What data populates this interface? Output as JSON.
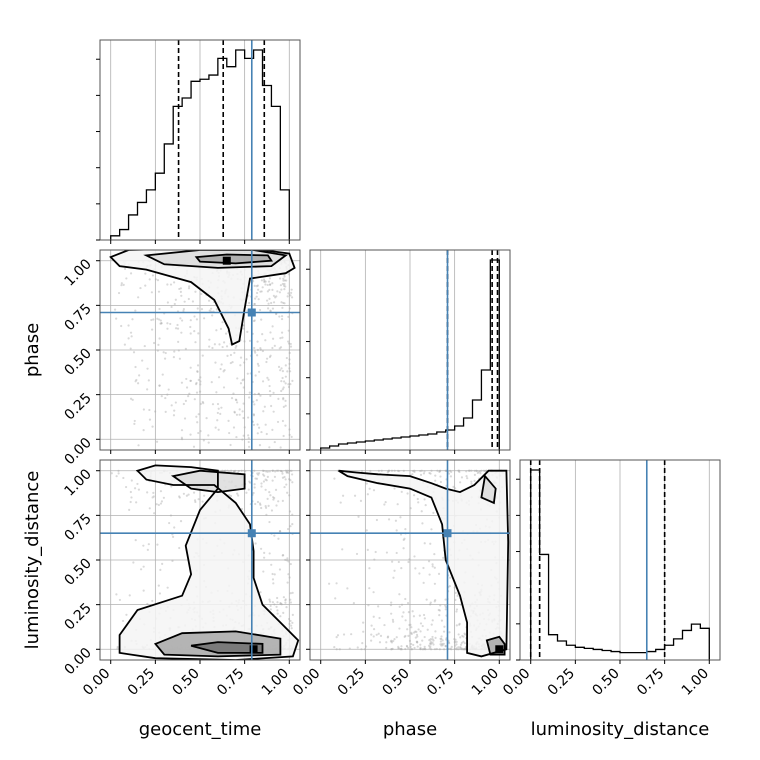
{
  "chart_data": {
    "type": "corner",
    "parameters": [
      "geocent_time",
      "phase",
      "luminosity_distance"
    ],
    "axis_labels": [
      "geocent_time",
      "phase",
      "luminosity_distance"
    ],
    "ticks": [
      0.0,
      0.25,
      0.5,
      0.75,
      1.0
    ],
    "tick_labels": [
      "0.00",
      "0.25",
      "0.50",
      "0.75",
      "1.00"
    ],
    "ranges": [
      [
        -0.06,
        1.06
      ],
      [
        -0.06,
        1.06
      ],
      [
        -0.06,
        1.06
      ]
    ],
    "grid": true,
    "truths": [
      0.79,
      0.71,
      0.65
    ],
    "quantiles": [
      [
        0.38,
        0.63,
        0.86
      ],
      [
        0.71,
        0.96,
        0.99
      ],
      [
        0.0,
        0.05,
        0.75
      ]
    ],
    "histograms": [
      {
        "bin_edges": [
          0.0,
          0.05,
          0.1,
          0.15,
          0.2,
          0.25,
          0.3,
          0.35,
          0.4,
          0.45,
          0.5,
          0.55,
          0.6,
          0.65,
          0.7,
          0.75,
          0.8,
          0.85,
          0.9,
          0.95,
          1.0
        ],
        "counts": [
          0.02,
          0.05,
          0.12,
          0.18,
          0.24,
          0.32,
          0.46,
          0.64,
          0.68,
          0.76,
          0.77,
          0.79,
          0.87,
          0.83,
          0.91,
          0.87,
          0.91,
          0.74,
          0.64,
          0.24
        ]
      },
      {
        "bin_edges": [
          0.0,
          0.05,
          0.1,
          0.15,
          0.2,
          0.25,
          0.3,
          0.35,
          0.4,
          0.45,
          0.5,
          0.55,
          0.6,
          0.65,
          0.7,
          0.75,
          0.8,
          0.85,
          0.9,
          0.95,
          1.0
        ],
        "counts": [
          0.01,
          0.02,
          0.03,
          0.035,
          0.04,
          0.045,
          0.05,
          0.055,
          0.06,
          0.065,
          0.07,
          0.075,
          0.08,
          0.09,
          0.1,
          0.12,
          0.16,
          0.25,
          0.4,
          0.95
        ]
      },
      {
        "bin_edges": [
          0.0,
          0.05,
          0.1,
          0.15,
          0.2,
          0.25,
          0.3,
          0.35,
          0.4,
          0.45,
          0.5,
          0.55,
          0.6,
          0.65,
          0.7,
          0.75,
          0.8,
          0.85,
          0.9,
          0.95,
          1.0
        ],
        "counts": [
          0.9,
          0.5,
          0.12,
          0.09,
          0.07,
          0.06,
          0.055,
          0.05,
          0.045,
          0.04,
          0.035,
          0.035,
          0.035,
          0.04,
          0.05,
          0.07,
          0.1,
          0.14,
          0.17,
          0.15
        ]
      }
    ],
    "density_2d": [
      {
        "x": "geocent_time",
        "y": "phase",
        "contour_levels": [
          [
            [
              0.0,
              1.02
            ],
            [
              0.1,
              1.06
            ],
            [
              0.5,
              1.07
            ],
            [
              0.85,
              1.06
            ],
            [
              1.0,
              1.04
            ],
            [
              1.03,
              0.96
            ],
            [
              0.98,
              0.93
            ],
            [
              0.78,
              0.9
            ],
            [
              0.75,
              0.73
            ],
            [
              0.72,
              0.55
            ],
            [
              0.68,
              0.53
            ],
            [
              0.66,
              0.62
            ],
            [
              0.58,
              0.78
            ],
            [
              0.45,
              0.88
            ],
            [
              0.2,
              0.95
            ],
            [
              0.05,
              0.97
            ]
          ],
          [
            [
              0.2,
              1.03
            ],
            [
              0.5,
              1.06
            ],
            [
              0.8,
              1.06
            ],
            [
              0.98,
              1.03
            ],
            [
              0.9,
              0.97
            ],
            [
              0.6,
              0.96
            ],
            [
              0.3,
              0.98
            ]
          ],
          [
            [
              0.48,
              1.02
            ],
            [
              0.65,
              1.035
            ],
            [
              0.88,
              1.03
            ],
            [
              0.9,
              1.0
            ],
            [
              0.7,
              0.985
            ],
            [
              0.5,
              0.995
            ]
          ]
        ],
        "peak": [
          0.65,
          1.0
        ]
      },
      {
        "x": "geocent_time",
        "y": "luminosity_distance",
        "contour_levels": [
          [
            [
              0.15,
              1.0
            ],
            [
              0.25,
              1.03
            ],
            [
              0.45,
              1.02
            ],
            [
              0.6,
              1.0
            ],
            [
              0.6,
              0.9
            ],
            [
              0.5,
              0.78
            ],
            [
              0.42,
              0.58
            ],
            [
              0.45,
              0.42
            ],
            [
              0.4,
              0.3
            ],
            [
              0.15,
              0.22
            ],
            [
              0.05,
              0.08
            ],
            [
              0.05,
              -0.02
            ],
            [
              0.25,
              -0.05
            ],
            [
              0.7,
              -0.06
            ],
            [
              1.02,
              -0.04
            ],
            [
              1.05,
              0.05
            ],
            [
              0.95,
              0.15
            ],
            [
              0.85,
              0.25
            ],
            [
              0.8,
              0.4
            ],
            [
              0.8,
              0.55
            ],
            [
              0.78,
              0.7
            ],
            [
              0.7,
              0.82
            ],
            [
              0.58,
              0.92
            ],
            [
              0.35,
              0.92
            ],
            [
              0.2,
              0.95
            ]
          ],
          [
            [
              0.35,
              0.97
            ],
            [
              0.5,
              1.0
            ],
            [
              0.75,
              0.98
            ],
            [
              0.75,
              0.9
            ],
            [
              0.6,
              0.88
            ],
            [
              0.45,
              0.9
            ]
          ],
          [
            [
              0.25,
              0.03
            ],
            [
              0.4,
              0.09
            ],
            [
              0.7,
              0.1
            ],
            [
              0.95,
              0.06
            ],
            [
              0.95,
              -0.03
            ],
            [
              0.6,
              -0.04
            ],
            [
              0.3,
              -0.03
            ]
          ],
          [
            [
              0.45,
              0.02
            ],
            [
              0.6,
              0.04
            ],
            [
              0.85,
              0.03
            ],
            [
              0.85,
              -0.02
            ],
            [
              0.6,
              -0.02
            ]
          ]
        ],
        "peak": [
          0.8,
          0.0
        ]
      },
      {
        "x": "phase",
        "y": "luminosity_distance",
        "contour_levels": [
          [
            [
              0.1,
              1.0
            ],
            [
              0.2,
              0.99
            ],
            [
              0.32,
              0.98
            ],
            [
              0.5,
              0.97
            ],
            [
              0.62,
              0.93
            ],
            [
              0.7,
              0.9
            ],
            [
              0.78,
              0.88
            ],
            [
              0.86,
              0.92
            ],
            [
              0.94,
              1.0
            ],
            [
              1.04,
              1.0
            ],
            [
              1.05,
              0.6
            ],
            [
              1.04,
              0.0
            ],
            [
              0.9,
              -0.04
            ],
            [
              0.82,
              -0.02
            ],
            [
              0.82,
              0.15
            ],
            [
              0.78,
              0.3
            ],
            [
              0.7,
              0.5
            ],
            [
              0.68,
              0.7
            ],
            [
              0.62,
              0.85
            ],
            [
              0.5,
              0.9
            ],
            [
              0.32,
              0.93
            ],
            [
              0.15,
              0.97
            ]
          ],
          [
            [
              0.92,
              0.97
            ],
            [
              0.98,
              0.9
            ],
            [
              0.97,
              0.82
            ],
            [
              0.9,
              0.85
            ]
          ],
          [
            [
              0.93,
              0.05
            ],
            [
              1.0,
              0.07
            ],
            [
              1.03,
              0.03
            ],
            [
              1.03,
              -0.03
            ],
            [
              0.95,
              -0.03
            ]
          ]
        ],
        "peak": [
          1.0,
          0.0
        ]
      }
    ]
  }
}
